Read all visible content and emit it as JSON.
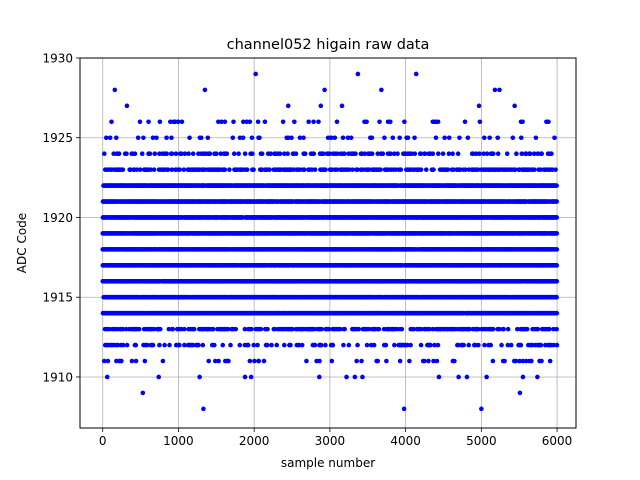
{
  "chart_data": {
    "type": "scatter",
    "title": "channel052 higain raw data",
    "xlabel": "sample number",
    "ylabel": "ADC Code",
    "xlim": [
      -300,
      6250
    ],
    "ylim": [
      1906.8,
      1930
    ],
    "xticks": [
      0,
      1000,
      2000,
      3000,
      4000,
      5000,
      6000
    ],
    "yticks": [
      1910,
      1915,
      1920,
      1925,
      1930
    ],
    "grid": true,
    "marker_color": "#0000ff",
    "series": [
      {
        "x_range": [
          0,
          5999
        ],
        "description_levels": {
          "dense": [
            1914,
            1915,
            1916,
            1917,
            1918,
            1919,
            1920,
            1921,
            1922
          ],
          "medium": [
            1912,
            1913,
            1923,
            1924
          ],
          "sparse": [
            1911,
            1925,
            1926
          ]
        },
        "outliers": [
          {
            "x": 20,
            "y": 1911
          },
          {
            "x": 60,
            "y": 1910
          },
          {
            "x": 160,
            "y": 1928
          },
          {
            "x": 230,
            "y": 1911
          },
          {
            "x": 320,
            "y": 1927
          },
          {
            "x": 530,
            "y": 1909
          },
          {
            "x": 740,
            "y": 1910
          },
          {
            "x": 1280,
            "y": 1910
          },
          {
            "x": 1330,
            "y": 1908
          },
          {
            "x": 1350,
            "y": 1928
          },
          {
            "x": 1400,
            "y": 1911
          },
          {
            "x": 1880,
            "y": 1910
          },
          {
            "x": 1960,
            "y": 1910
          },
          {
            "x": 2020,
            "y": 1929
          },
          {
            "x": 2060,
            "y": 1911
          },
          {
            "x": 2130,
            "y": 1911
          },
          {
            "x": 2450,
            "y": 1927
          },
          {
            "x": 2860,
            "y": 1910
          },
          {
            "x": 2880,
            "y": 1927
          },
          {
            "x": 2930,
            "y": 1928
          },
          {
            "x": 3160,
            "y": 1927
          },
          {
            "x": 3220,
            "y": 1910
          },
          {
            "x": 3330,
            "y": 1910
          },
          {
            "x": 3370,
            "y": 1929
          },
          {
            "x": 3430,
            "y": 1910
          },
          {
            "x": 3680,
            "y": 1928
          },
          {
            "x": 3980,
            "y": 1908
          },
          {
            "x": 4050,
            "y": 1911
          },
          {
            "x": 4140,
            "y": 1929
          },
          {
            "x": 4440,
            "y": 1910
          },
          {
            "x": 4700,
            "y": 1910
          },
          {
            "x": 4810,
            "y": 1910
          },
          {
            "x": 4970,
            "y": 1927
          },
          {
            "x": 5000,
            "y": 1908
          },
          {
            "x": 5070,
            "y": 1910
          },
          {
            "x": 5180,
            "y": 1928
          },
          {
            "x": 5240,
            "y": 1928
          },
          {
            "x": 5440,
            "y": 1927
          },
          {
            "x": 5510,
            "y": 1909
          },
          {
            "x": 5550,
            "y": 1910
          },
          {
            "x": 5740,
            "y": 1910
          }
        ]
      }
    ]
  }
}
